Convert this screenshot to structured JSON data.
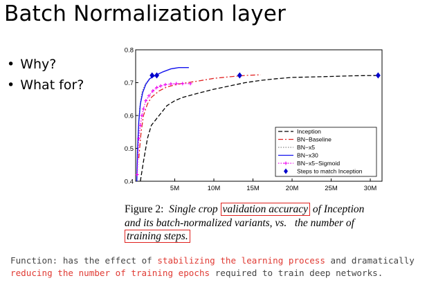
{
  "slide": {
    "title": "Batch Normalization layer",
    "bullets": [
      "Why?",
      "What for?"
    ]
  },
  "caption": {
    "label": "Figure 2:",
    "part1": "Single crop",
    "boxed1": "validation accuracy",
    "part2": "of Inception",
    "line2": "and its batch-normalized variants, vs.   the number of",
    "boxed2": "training steps."
  },
  "footer": {
    "p1": "Function",
    "p2": ": has the effect of ",
    "p3": "stabilizing the learning process",
    "p4": " and dramatically",
    "p5": "reducing the number of training epochs",
    "p6": " required to train deep networks."
  },
  "colors": {
    "inception": "#000000",
    "bn_baseline": "#e02020",
    "bn_x5": "#888888",
    "bn_x30": "#1010ee",
    "bn_x5_sigmoid": "#ee00ee",
    "steps_marker": "#0000cc",
    "highlight": "#e03a33"
  },
  "chart_data": {
    "type": "line",
    "xlim": [
      0,
      31500000
    ],
    "ylim": [
      0.4,
      0.8
    ],
    "xticks": [
      5000000,
      10000000,
      15000000,
      20000000,
      25000000,
      30000000
    ],
    "xtick_labels": [
      "5M",
      "10M",
      "15M",
      "20M",
      "25M",
      "30M"
    ],
    "yticks": [
      0.4,
      0.5,
      0.6,
      0.7,
      0.8
    ],
    "ytick_labels": [
      "0.4",
      "0.5",
      "0.6",
      "0.7",
      "0.8"
    ],
    "legend_position": "bottom-right",
    "series": [
      {
        "name": "Inception",
        "style": "dashed",
        "color": "#000000",
        "points": [
          [
            600000,
            0.4
          ],
          [
            1000000,
            0.46
          ],
          [
            1500000,
            0.53
          ],
          [
            2000000,
            0.57
          ],
          [
            3000000,
            0.6
          ],
          [
            4000000,
            0.63
          ],
          [
            5000000,
            0.645
          ],
          [
            6000000,
            0.655
          ],
          [
            8000000,
            0.668
          ],
          [
            10000000,
            0.68
          ],
          [
            12000000,
            0.69
          ],
          [
            14000000,
            0.7
          ],
          [
            16000000,
            0.707
          ],
          [
            18000000,
            0.712
          ],
          [
            20000000,
            0.716
          ],
          [
            22000000,
            0.717
          ],
          [
            25000000,
            0.719
          ],
          [
            28000000,
            0.721
          ],
          [
            31000000,
            0.722
          ]
        ]
      },
      {
        "name": "BN−Baseline",
        "style": "dashdot",
        "color": "#e02020",
        "points": [
          [
            400000,
            0.47
          ],
          [
            700000,
            0.55
          ],
          [
            1000000,
            0.6
          ],
          [
            1500000,
            0.635
          ],
          [
            2000000,
            0.655
          ],
          [
            3000000,
            0.675
          ],
          [
            4000000,
            0.687
          ],
          [
            5000000,
            0.693
          ],
          [
            6000000,
            0.698
          ],
          [
            8000000,
            0.705
          ],
          [
            10000000,
            0.713
          ],
          [
            12000000,
            0.718
          ],
          [
            14000000,
            0.722
          ],
          [
            16000000,
            0.724
          ]
        ]
      },
      {
        "name": "BN−x5",
        "style": "dotted",
        "color": "#888888",
        "points": [
          [
            200000,
            0.45
          ],
          [
            350000,
            0.55
          ],
          [
            500000,
            0.62
          ],
          [
            800000,
            0.67
          ],
          [
            1200000,
            0.695
          ],
          [
            1700000,
            0.71
          ],
          [
            2300000,
            0.72
          ],
          [
            2900000,
            0.723
          ]
        ]
      },
      {
        "name": "BN−x30",
        "style": "solid",
        "color": "#1010ee",
        "points": [
          [
            150000,
            0.4
          ],
          [
            250000,
            0.5
          ],
          [
            400000,
            0.58
          ],
          [
            600000,
            0.635
          ],
          [
            900000,
            0.67
          ],
          [
            1300000,
            0.695
          ],
          [
            1800000,
            0.712
          ],
          [
            2500000,
            0.722
          ],
          [
            3500000,
            0.733
          ],
          [
            4500000,
            0.742
          ],
          [
            5500000,
            0.746
          ],
          [
            6800000,
            0.746
          ]
        ]
      },
      {
        "name": "BN−x5−Sigmoid",
        "style": "dotted-plus",
        "color": "#ee00ee",
        "points": [
          [
            200000,
            0.42
          ],
          [
            400000,
            0.53
          ],
          [
            600000,
            0.57
          ],
          [
            800000,
            0.6
          ],
          [
            1000000,
            0.62
          ],
          [
            1300000,
            0.645
          ],
          [
            1700000,
            0.66
          ],
          [
            2200000,
            0.675
          ],
          [
            2700000,
            0.685
          ],
          [
            3200000,
            0.69
          ],
          [
            3800000,
            0.694
          ],
          [
            4500000,
            0.696
          ],
          [
            5200000,
            0.697
          ],
          [
            6000000,
            0.697
          ],
          [
            7000000,
            0.697
          ]
        ]
      },
      {
        "name": "Steps to match Inception",
        "style": "marker-diamond",
        "color": "#0000cc",
        "points": [
          [
            2100000,
            0.722
          ],
          [
            2700000,
            0.722
          ],
          [
            13300000,
            0.722
          ],
          [
            31000000,
            0.722
          ]
        ]
      }
    ]
  }
}
